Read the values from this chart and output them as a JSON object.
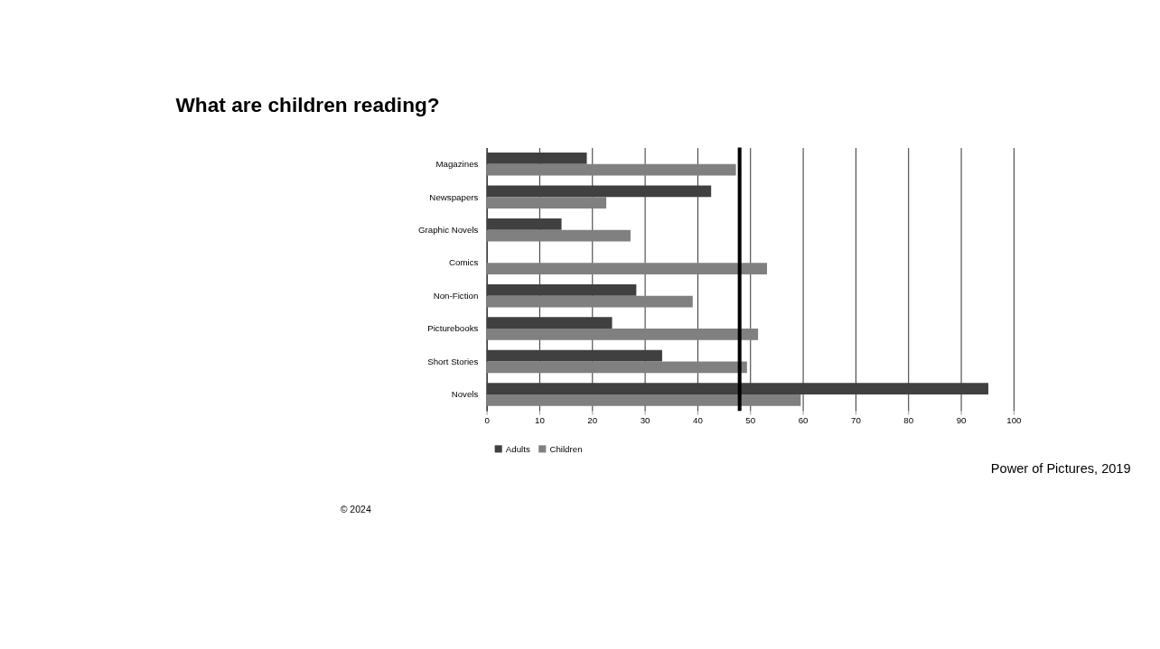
{
  "chart_data": {
    "type": "bar",
    "orientation": "horizontal",
    "title": "What are children reading?",
    "categories": [
      "Magazines",
      "Newspapers",
      "Graphic Novels",
      "Comics",
      "Non-Fiction",
      "Picturebooks",
      "Short Stories",
      "Novels"
    ],
    "series": [
      {
        "name": "Adults",
        "color": "#404040",
        "values": [
          19,
          42.6,
          14.2,
          null,
          28.4,
          23.8,
          33.3,
          95.2
        ]
      },
      {
        "name": "Children",
        "color": "#808080",
        "values": [
          47.3,
          22.7,
          27.3,
          53.2,
          39.1,
          51.5,
          49.4,
          59.6
        ]
      }
    ],
    "xlim": [
      0,
      100
    ],
    "xticks": [
      0,
      10,
      20,
      30,
      40,
      50,
      60,
      70,
      80,
      90,
      100
    ],
    "ref_lines": [
      {
        "axis": "x",
        "value": 48,
        "color": "#000000"
      }
    ],
    "grid": "x",
    "legend": "bottom",
    "annotations": [
      "Power of Pictures, 2019",
      "© 2024"
    ]
  }
}
